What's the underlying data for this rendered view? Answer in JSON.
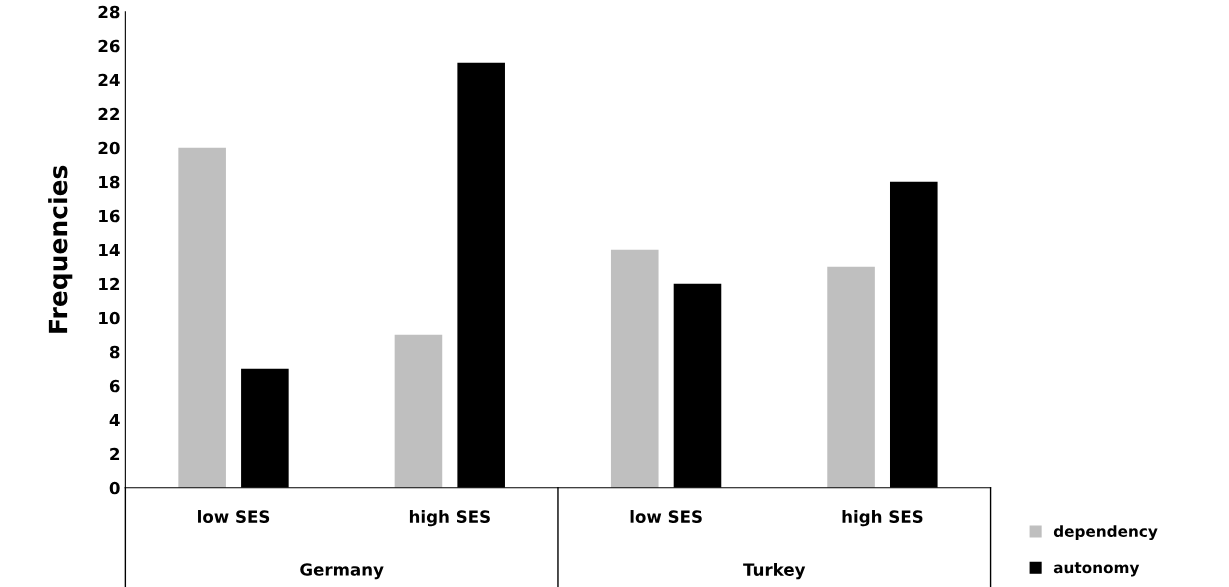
{
  "chart_data": {
    "type": "bar",
    "ylabel": "Frequencies",
    "categories": [
      "low SES",
      "high SES",
      "low SES",
      "high SES"
    ],
    "series": [
      {
        "name": "dependency",
        "color": "#bfbfbf",
        "values": [
          20,
          9,
          14,
          13
        ]
      },
      {
        "name": "autonomy",
        "color": "#000000",
        "values": [
          7,
          25,
          12,
          18
        ]
      }
    ],
    "annotations": [
      "Germany",
      "Turkey"
    ],
    "ylim": [
      0,
      28
    ],
    "yticks": [
      0,
      2,
      4,
      6,
      8,
      10,
      12,
      14,
      16,
      18,
      20,
      22,
      24,
      26,
      28
    ],
    "grid": false,
    "legend": "right"
  }
}
